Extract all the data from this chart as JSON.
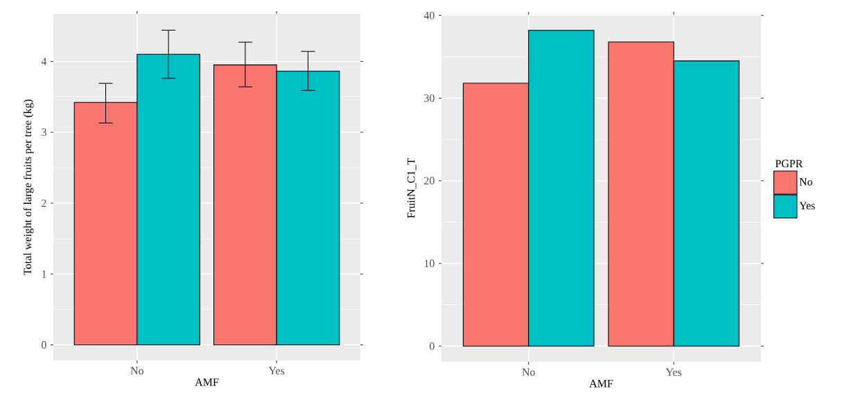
{
  "chart_data": [
    {
      "type": "bar",
      "xlabel": "AMF",
      "ylabel": "Total weight of large fruits per tree (kg)",
      "categories": [
        "No",
        "Yes"
      ],
      "series": [
        {
          "color": "#F8766D",
          "values": [
            3.42,
            3.95
          ],
          "errors": [
            [
              3.13,
              3.69
            ],
            [
              3.64,
              4.27
            ]
          ]
        },
        {
          "color": "#00BFC4",
          "values": [
            4.1,
            3.86
          ],
          "errors": [
            [
              3.76,
              4.44
            ],
            [
              3.59,
              4.14
            ]
          ]
        }
      ],
      "ylim": [
        -0.22,
        4.67
      ],
      "yticks": [
        0,
        1,
        2,
        3,
        4
      ],
      "grid": true
    },
    {
      "type": "bar",
      "xlabel": "AMF",
      "ylabel": "FruitN_C1_T",
      "categories": [
        "No",
        "Yes"
      ],
      "legend_title": "PGPR",
      "series": [
        {
          "name": "No",
          "color": "#F8766D",
          "values": [
            31.8,
            36.8
          ]
        },
        {
          "name": "Yes",
          "color": "#00BFC4",
          "values": [
            38.2,
            34.5
          ]
        }
      ],
      "ylim": [
        -1.91,
        40.11
      ],
      "yticks": [
        0,
        10,
        20,
        30,
        40
      ],
      "grid": true,
      "legend": "right"
    }
  ]
}
